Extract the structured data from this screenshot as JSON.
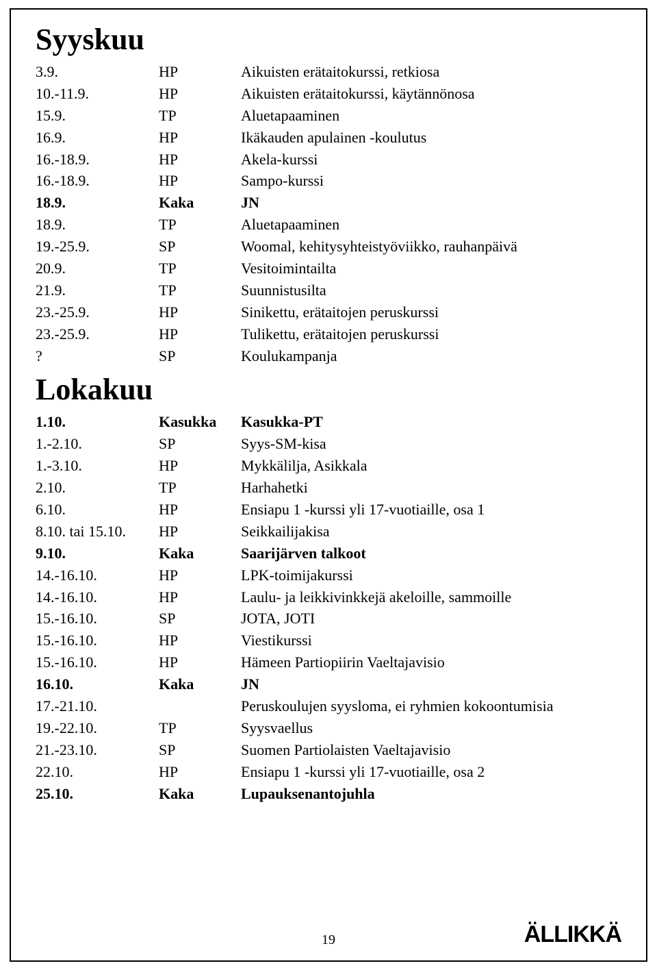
{
  "sections": [
    {
      "heading": "Syyskuu",
      "rows": [
        {
          "date": "3.9.",
          "org": "HP",
          "desc": "Aikuisten erätaitokurssi, retkiosa",
          "bold": false
        },
        {
          "date": "10.-11.9.",
          "org": "HP",
          "desc": "Aikuisten erätaitokurssi, käytännönosa",
          "bold": false
        },
        {
          "date": "15.9.",
          "org": "TP",
          "desc": "Aluetapaaminen",
          "bold": false
        },
        {
          "date": "16.9.",
          "org": "HP",
          "desc": "Ikäkauden apulainen -koulutus",
          "bold": false
        },
        {
          "date": "16.-18.9.",
          "org": "HP",
          "desc": "Akela-kurssi",
          "bold": false
        },
        {
          "date": "16.-18.9.",
          "org": "HP",
          "desc": "Sampo-kurssi",
          "bold": false
        },
        {
          "date": "18.9.",
          "org": "Kaka",
          "desc": "JN",
          "bold": true
        },
        {
          "date": "18.9.",
          "org": "TP",
          "desc": "Aluetapaaminen",
          "bold": false
        },
        {
          "date": "19.-25.9.",
          "org": "SP",
          "desc": "Woomal, kehitysyhteistyöviikko, rauhanpäivä",
          "bold": false
        },
        {
          "date": "20.9.",
          "org": "TP",
          "desc": "Vesitoimintailta",
          "bold": false
        },
        {
          "date": "21.9.",
          "org": "TP",
          "desc": "Suunnistusilta",
          "bold": false
        },
        {
          "date": "23.-25.9.",
          "org": "HP",
          "desc": "Sinikettu, erätaitojen peruskurssi",
          "bold": false
        },
        {
          "date": "23.-25.9.",
          "org": "HP",
          "desc": "Tulikettu, erätaitojen peruskurssi",
          "bold": false
        },
        {
          "date": "?",
          "org": "SP",
          "desc": "Koulukampanja",
          "bold": false
        }
      ]
    },
    {
      "heading": "Lokakuu",
      "rows": [
        {
          "date": "1.10.",
          "org": "Kasukka",
          "desc": "Kasukka-PT",
          "bold": true
        },
        {
          "date": "1.-2.10.",
          "org": "SP",
          "desc": "Syys-SM-kisa",
          "bold": false
        },
        {
          "date": "1.-3.10.",
          "org": "HP",
          "desc": "Mykkälilja, Asikkala",
          "bold": false
        },
        {
          "date": "2.10.",
          "org": "TP",
          "desc": "Harhahetki",
          "bold": false
        },
        {
          "date": "6.10.",
          "org": "HP",
          "desc": "Ensiapu 1 -kurssi yli 17-vuotiaille, osa 1",
          "bold": false
        },
        {
          "date": "8.10. tai 15.10.",
          "org": "HP",
          "desc": "Seikkailijakisa",
          "bold": false
        },
        {
          "date": "9.10.",
          "org": "Kaka",
          "desc": "Saarijärven talkoot",
          "bold": true
        },
        {
          "date": "14.-16.10.",
          "org": "HP",
          "desc": "LPK-toimijakurssi",
          "bold": false
        },
        {
          "date": "14.-16.10.",
          "org": "HP",
          "desc": "Laulu- ja leikkivinkkejä akeloille, sammoille",
          "bold": false
        },
        {
          "date": "15.-16.10.",
          "org": "SP",
          "desc": "JOTA, JOTI",
          "bold": false
        },
        {
          "date": "15.-16.10.",
          "org": "HP",
          "desc": "Viestikurssi",
          "bold": false
        },
        {
          "date": "15.-16.10.",
          "org": "HP",
          "desc": "Hämeen Partiopiirin Vaeltajavisio",
          "bold": false
        },
        {
          "date": "16.10.",
          "org": "Kaka",
          "desc": "JN",
          "bold": true
        },
        {
          "date": "17.-21.10.",
          "org": "",
          "desc": "Peruskoulujen syysloma, ei ryhmien kokoontumisia",
          "bold": false
        },
        {
          "date": "19.-22.10.",
          "org": "TP",
          "desc": "Syysvaellus",
          "bold": false
        },
        {
          "date": "21.-23.10.",
          "org": "SP",
          "desc": "Suomen Partiolaisten Vaeltajavisio",
          "bold": false
        },
        {
          "date": "22.10.",
          "org": "HP",
          "desc": "Ensiapu 1 -kurssi yli 17-vuotiaille, osa 2",
          "bold": false
        },
        {
          "date": "25.10.",
          "org": "Kaka",
          "desc": "Lupauksenantojuhla",
          "bold": true
        }
      ]
    }
  ],
  "footer": {
    "page_number": "19",
    "logo_text": "ÄLLIKKÄ"
  }
}
